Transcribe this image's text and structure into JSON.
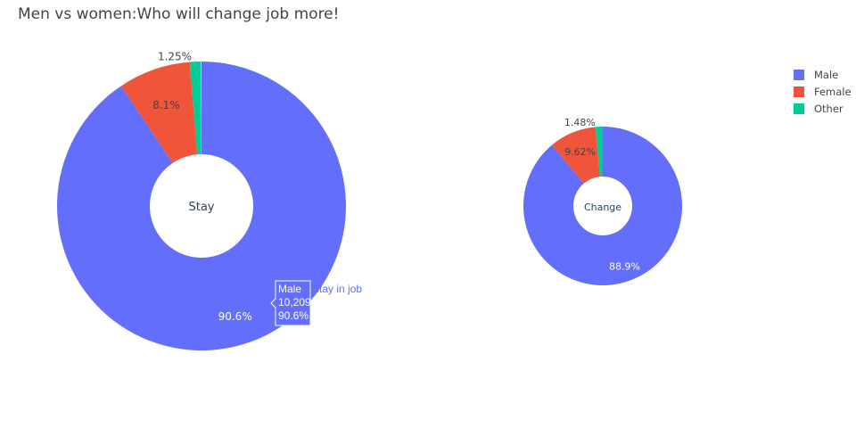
{
  "chart_data": {
    "type": "pie",
    "title": "Men vs women:Who will change job more!",
    "hole": true,
    "legend_position": "top-right",
    "colors": {
      "Male": "#636efa",
      "Female": "#ef553b",
      "Other": "#00cc96"
    },
    "labels": [
      "Male",
      "Female",
      "Other"
    ],
    "pies": [
      {
        "name": "Stay",
        "center_text": "Stay",
        "slices": [
          {
            "label": "Male",
            "percent": 90.6,
            "text": "90.6%"
          },
          {
            "label": "Female",
            "percent": 8.1,
            "text": "8.1%"
          },
          {
            "label": "Other",
            "percent": 1.25,
            "text": "1.25%"
          }
        ]
      },
      {
        "name": "Change",
        "center_text": "Change",
        "slices": [
          {
            "label": "Male",
            "percent": 88.9,
            "text": "88.9%"
          },
          {
            "label": "Female",
            "percent": 9.62,
            "text": "9.62%"
          },
          {
            "label": "Other",
            "percent": 1.48,
            "text": "1.48%"
          }
        ]
      }
    ],
    "hover": {
      "pie": "Stay",
      "lines": [
        "Male",
        "10,209",
        "90.6%"
      ],
      "trace_name": "stay in job"
    }
  }
}
